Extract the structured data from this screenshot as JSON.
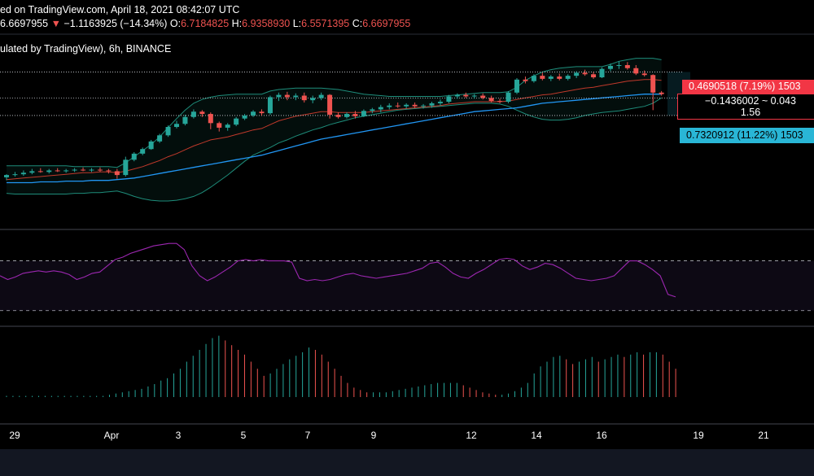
{
  "header": {
    "line1": "ed on TradingView.com, April 18, 2021 08:42:07 UTC",
    "price": "6.6697955",
    "arrow": "▼",
    "change": "−1.1163925 (−14.34%)",
    "o_label": "O:",
    "o_val": "6.7184825",
    "h_label": "H:",
    "h_val": "6.9358930",
    "l_label": "L:",
    "l_val": "6.5571395",
    "c_label": "C:",
    "c_val": "6.6697955",
    "line3": "ulated by TradingView), 6h, BINANCE"
  },
  "tags": {
    "up": "0.4690518 (7.19%) 1503",
    "range_line1": "−0.1436002 ~ 0.043",
    "range_line2": "1.56",
    "down": "0.7320912 (11.22%) 1503"
  },
  "colors": {
    "up": "#26a69a",
    "down": "#ef5350",
    "ma_blue": "#2196f3",
    "ma_red": "#c0392b",
    "bb": "#1e8c7a",
    "rsi": "#9c27b0",
    "tag_red": "#f23645",
    "tag_cyan": "#29b6d6"
  },
  "chart_data": [
    {
      "type": "candlestick",
      "title": "",
      "interval": "6h",
      "exchange": "BINANCE",
      "x_ticks": [
        "29",
        "Apr",
        "3",
        "5",
        "7",
        "9",
        "12",
        "14",
        "16",
        "19",
        "21"
      ],
      "candles": [
        {
          "o": -0.3,
          "h": 0.1,
          "l": -0.7,
          "c": 0.0
        },
        {
          "o": 0.0,
          "h": 0.4,
          "l": -0.2,
          "c": 0.1
        },
        {
          "o": 0.1,
          "h": 0.6,
          "l": -0.1,
          "c": 0.3
        },
        {
          "o": 0.3,
          "h": 0.8,
          "l": 0.1,
          "c": 0.5
        },
        {
          "o": 0.5,
          "h": 0.9,
          "l": 0.3,
          "c": 0.4
        },
        {
          "o": 0.4,
          "h": 0.8,
          "l": 0.2,
          "c": 0.6
        },
        {
          "o": 0.6,
          "h": 0.9,
          "l": 0.4,
          "c": 0.5
        },
        {
          "o": 0.5,
          "h": 0.8,
          "l": 0.3,
          "c": 0.6
        },
        {
          "o": 0.6,
          "h": 0.9,
          "l": 0.4,
          "c": 0.7
        },
        {
          "o": 0.7,
          "h": 1.0,
          "l": 0.5,
          "c": 0.6
        },
        {
          "o": 0.6,
          "h": 0.9,
          "l": 0.4,
          "c": 0.7
        },
        {
          "o": 0.7,
          "h": 1.0,
          "l": 0.4,
          "c": 0.6
        },
        {
          "o": 0.6,
          "h": 0.8,
          "l": 0.2,
          "c": 0.5
        },
        {
          "o": 0.5,
          "h": 0.8,
          "l": -0.5,
          "c": 0.0
        },
        {
          "o": 0.0,
          "h": 2.4,
          "l": -0.2,
          "c": 2.0
        },
        {
          "o": 2.0,
          "h": 3.0,
          "l": 1.8,
          "c": 2.8
        },
        {
          "o": 2.8,
          "h": 3.6,
          "l": 2.6,
          "c": 3.4
        },
        {
          "o": 3.4,
          "h": 4.6,
          "l": 3.3,
          "c": 4.4
        },
        {
          "o": 4.4,
          "h": 5.4,
          "l": 4.2,
          "c": 5.2
        },
        {
          "o": 5.2,
          "h": 6.5,
          "l": 5.0,
          "c": 6.3
        },
        {
          "o": 6.3,
          "h": 7.1,
          "l": 6.1,
          "c": 6.7
        },
        {
          "o": 6.7,
          "h": 7.9,
          "l": 6.5,
          "c": 7.6
        },
        {
          "o": 7.6,
          "h": 8.6,
          "l": 7.4,
          "c": 8.3
        },
        {
          "o": 8.3,
          "h": 8.5,
          "l": 7.6,
          "c": 8.0
        },
        {
          "o": 8.0,
          "h": 8.2,
          "l": 6.0,
          "c": 6.8
        },
        {
          "o": 6.8,
          "h": 7.0,
          "l": 5.7,
          "c": 6.2
        },
        {
          "o": 6.2,
          "h": 6.8,
          "l": 5.8,
          "c": 6.6
        },
        {
          "o": 6.6,
          "h": 7.6,
          "l": 6.4,
          "c": 7.4
        },
        {
          "o": 7.4,
          "h": 8.0,
          "l": 7.2,
          "c": 7.8
        },
        {
          "o": 7.8,
          "h": 8.5,
          "l": 7.6,
          "c": 8.3
        },
        {
          "o": 8.3,
          "h": 8.6,
          "l": 7.8,
          "c": 8.1
        },
        {
          "o": 8.1,
          "h": 10.4,
          "l": 7.9,
          "c": 10.2
        },
        {
          "o": 10.2,
          "h": 10.8,
          "l": 9.7,
          "c": 10.5
        },
        {
          "o": 10.5,
          "h": 10.9,
          "l": 9.8,
          "c": 10.2
        },
        {
          "o": 10.2,
          "h": 10.7,
          "l": 9.8,
          "c": 10.4
        },
        {
          "o": 10.4,
          "h": 10.8,
          "l": 9.5,
          "c": 9.8
        },
        {
          "o": 9.8,
          "h": 10.4,
          "l": 9.4,
          "c": 10.1
        },
        {
          "o": 10.1,
          "h": 10.8,
          "l": 9.8,
          "c": 10.5
        },
        {
          "o": 10.5,
          "h": 10.6,
          "l": 7.4,
          "c": 7.9
        },
        {
          "o": 7.9,
          "h": 8.2,
          "l": 7.4,
          "c": 7.6
        },
        {
          "o": 7.6,
          "h": 8.2,
          "l": 7.4,
          "c": 8.0
        },
        {
          "o": 8.0,
          "h": 8.4,
          "l": 7.4,
          "c": 7.7
        },
        {
          "o": 7.7,
          "h": 8.6,
          "l": 7.6,
          "c": 8.4
        },
        {
          "o": 8.4,
          "h": 8.8,
          "l": 8.1,
          "c": 8.6
        },
        {
          "o": 8.6,
          "h": 9.2,
          "l": 8.2,
          "c": 8.9
        },
        {
          "o": 8.9,
          "h": 9.4,
          "l": 8.6,
          "c": 9.1
        },
        {
          "o": 9.1,
          "h": 9.5,
          "l": 8.8,
          "c": 9.0
        },
        {
          "o": 9.0,
          "h": 9.4,
          "l": 8.7,
          "c": 9.2
        },
        {
          "o": 9.2,
          "h": 9.5,
          "l": 8.8,
          "c": 9.0
        },
        {
          "o": 9.0,
          "h": 9.3,
          "l": 8.7,
          "c": 9.1
        },
        {
          "o": 9.1,
          "h": 9.6,
          "l": 8.8,
          "c": 9.4
        },
        {
          "o": 9.4,
          "h": 9.9,
          "l": 9.1,
          "c": 9.6
        },
        {
          "o": 9.6,
          "h": 10.5,
          "l": 9.4,
          "c": 10.3
        },
        {
          "o": 10.3,
          "h": 10.7,
          "l": 10.0,
          "c": 10.5
        },
        {
          "o": 10.5,
          "h": 10.8,
          "l": 10.1,
          "c": 10.3
        },
        {
          "o": 10.3,
          "h": 10.6,
          "l": 10.0,
          "c": 10.4
        },
        {
          "o": 10.4,
          "h": 10.7,
          "l": 9.9,
          "c": 10.1
        },
        {
          "o": 10.1,
          "h": 10.4,
          "l": 9.5,
          "c": 9.7
        },
        {
          "o": 9.7,
          "h": 10.0,
          "l": 9.4,
          "c": 9.6
        },
        {
          "o": 9.6,
          "h": 11.0,
          "l": 9.4,
          "c": 10.8
        },
        {
          "o": 10.8,
          "h": 12.7,
          "l": 10.6,
          "c": 12.5
        },
        {
          "o": 12.5,
          "h": 12.9,
          "l": 12.0,
          "c": 12.3
        },
        {
          "o": 12.3,
          "h": 13.2,
          "l": 12.1,
          "c": 13.0
        },
        {
          "o": 13.0,
          "h": 13.4,
          "l": 12.4,
          "c": 12.6
        },
        {
          "o": 12.6,
          "h": 13.1,
          "l": 12.3,
          "c": 12.9
        },
        {
          "o": 12.9,
          "h": 13.3,
          "l": 12.4,
          "c": 12.6
        },
        {
          "o": 12.6,
          "h": 13.2,
          "l": 12.4,
          "c": 13.0
        },
        {
          "o": 13.0,
          "h": 13.6,
          "l": 12.7,
          "c": 13.4
        },
        {
          "o": 13.4,
          "h": 13.8,
          "l": 13.0,
          "c": 13.2
        },
        {
          "o": 13.2,
          "h": 13.5,
          "l": 12.6,
          "c": 12.8
        },
        {
          "o": 12.8,
          "h": 14.1,
          "l": 12.7,
          "c": 13.9
        },
        {
          "o": 13.9,
          "h": 14.6,
          "l": 13.6,
          "c": 14.3
        },
        {
          "o": 14.3,
          "h": 14.9,
          "l": 13.9,
          "c": 14.4
        },
        {
          "o": 14.4,
          "h": 14.8,
          "l": 13.8,
          "c": 14.0
        },
        {
          "o": 14.0,
          "h": 14.4,
          "l": 13.1,
          "c": 13.3
        },
        {
          "o": 13.3,
          "h": 13.7,
          "l": 12.9,
          "c": 13.1
        },
        {
          "o": 13.1,
          "h": 13.2,
          "l": 8.5,
          "c": 10.8
        },
        {
          "o": 10.8,
          "h": 11.0,
          "l": 10.4,
          "c": 10.6
        }
      ],
      "ma_fast": [
        -0.6,
        -0.5,
        -0.4,
        -0.3,
        -0.2,
        -0.1,
        0.0,
        0.1,
        0.2,
        0.3,
        0.3,
        0.4,
        0.4,
        0.3,
        0.5,
        0.8,
        1.1,
        1.5,
        1.9,
        2.4,
        2.8,
        3.3,
        3.8,
        4.2,
        4.6,
        4.8,
        5.0,
        5.3,
        5.6,
        5.9,
        6.1,
        6.6,
        7.1,
        7.4,
        7.7,
        7.9,
        8.1,
        8.3,
        8.3,
        8.2,
        8.2,
        8.2,
        8.2,
        8.3,
        8.4,
        8.5,
        8.6,
        8.7,
        8.8,
        8.9,
        9.0,
        9.1,
        9.3,
        9.4,
        9.5,
        9.6,
        9.6,
        9.6,
        9.6,
        9.7,
        9.9,
        10.1,
        10.3,
        10.5,
        10.6,
        10.8,
        11.0,
        11.2,
        11.4,
        11.5,
        11.7,
        11.9,
        12.1,
        12.3,
        12.4,
        12.5,
        12.5,
        12.4
      ],
      "ma_slow": [
        -1.0,
        -1.0,
        -1.0,
        -1.0,
        -0.9,
        -0.9,
        -0.9,
        -0.8,
        -0.8,
        -0.8,
        -0.7,
        -0.7,
        -0.7,
        -0.6,
        -0.5,
        -0.4,
        -0.2,
        0.0,
        0.2,
        0.4,
        0.6,
        0.8,
        1.0,
        1.2,
        1.4,
        1.6,
        1.8,
        2.0,
        2.2,
        2.4,
        2.6,
        2.9,
        3.2,
        3.5,
        3.8,
        4.1,
        4.4,
        4.7,
        4.9,
        5.1,
        5.3,
        5.5,
        5.7,
        5.9,
        6.1,
        6.3,
        6.5,
        6.7,
        6.9,
        7.1,
        7.3,
        7.5,
        7.7,
        7.9,
        8.1,
        8.3,
        8.4,
        8.5,
        8.6,
        8.7,
        8.8,
        9.0,
        9.2,
        9.4,
        9.5,
        9.6,
        9.7,
        9.8,
        9.9,
        10.0,
        10.1,
        10.2,
        10.3,
        10.4,
        10.5,
        10.6,
        10.6,
        10.6
      ],
      "bb_upper": [
        1.2,
        1.2,
        1.2,
        1.2,
        1.2,
        1.2,
        1.2,
        1.2,
        1.1,
        1.1,
        1.1,
        1.1,
        1.1,
        1.0,
        1.6,
        2.4,
        3.2,
        4.0,
        5.0,
        6.2,
        7.4,
        8.5,
        9.4,
        9.9,
        10.2,
        10.4,
        10.5,
        10.6,
        10.6,
        10.6,
        10.6,
        11.0,
        11.2,
        11.3,
        11.4,
        11.4,
        11.4,
        11.4,
        11.3,
        11.2,
        11.0,
        10.8,
        10.6,
        10.5,
        10.4,
        10.3,
        10.3,
        10.3,
        10.3,
        10.3,
        10.3,
        10.3,
        10.4,
        10.5,
        10.6,
        10.7,
        10.8,
        10.8,
        10.8,
        10.9,
        11.5,
        12.4,
        13.0,
        13.5,
        13.8,
        14.0,
        14.1,
        14.2,
        14.2,
        14.2,
        14.2,
        14.5,
        14.9,
        15.1,
        15.3,
        15.3,
        15.3,
        15.1
      ],
      "bb_lower": [
        -2.4,
        -2.5,
        -2.5,
        -2.5,
        -2.5,
        -2.5,
        -2.5,
        -2.5,
        -2.4,
        -2.4,
        -2.3,
        -2.3,
        -2.2,
        -2.1,
        -2.4,
        -2.8,
        -3.1,
        -3.3,
        -3.4,
        -3.4,
        -3.3,
        -3.1,
        -2.8,
        -2.3,
        -1.6,
        -0.8,
        0.0,
        0.9,
        1.8,
        2.6,
        3.1,
        3.6,
        4.2,
        4.6,
        5.1,
        5.5,
        5.9,
        6.2,
        6.6,
        6.9,
        7.2,
        7.5,
        7.7,
        7.9,
        8.1,
        8.3,
        8.5,
        8.6,
        8.7,
        8.8,
        8.9,
        9.0,
        9.1,
        9.2,
        9.3,
        9.4,
        9.4,
        9.4,
        9.3,
        9.0,
        8.5,
        8.0,
        7.6,
        7.3,
        7.2,
        7.2,
        7.3,
        7.5,
        7.8,
        8.0,
        8.2,
        8.3,
        8.4,
        8.6,
        8.8,
        9.0,
        9.4,
        10.1
      ],
      "hlines": [
        13.5,
        10.1,
        7.8
      ],
      "bb_ylim": [
        -5,
        16
      ]
    },
    {
      "type": "line",
      "title": "",
      "bands": [
        30,
        70
      ],
      "ylim": [
        20,
        90
      ],
      "values": [
        58,
        55,
        57,
        60,
        61,
        62,
        61,
        62,
        61,
        59,
        55,
        57,
        60,
        61,
        66,
        71,
        73,
        76,
        78,
        80,
        82,
        83,
        84,
        84,
        79,
        66,
        58,
        54,
        57,
        61,
        65,
        70,
        71,
        70,
        71,
        70,
        70,
        70,
        69,
        56,
        54,
        55,
        54,
        55,
        57,
        59,
        60,
        58,
        57,
        56,
        57,
        58,
        59,
        60,
        62,
        64,
        68,
        69,
        65,
        60,
        57,
        56,
        60,
        63,
        67,
        71,
        72,
        71,
        66,
        63,
        65,
        68,
        67,
        64,
        60,
        56,
        55,
        54,
        55,
        56,
        58,
        64,
        70,
        70,
        67,
        63,
        58,
        43,
        41
      ],
      "overlay": "purple"
    },
    {
      "type": "bar",
      "title": "",
      "values": [
        -1,
        -1,
        -1,
        -1,
        -1,
        -1,
        -1,
        -1,
        1,
        1,
        1,
        1,
        1,
        1,
        1,
        1,
        2,
        3,
        4,
        5,
        6,
        7,
        9,
        11,
        14,
        16,
        20,
        24,
        30,
        35,
        40,
        45,
        50,
        52,
        48,
        44,
        40,
        36,
        30,
        24,
        18,
        20,
        24,
        28,
        32,
        35,
        38,
        42,
        40,
        36,
        30,
        24,
        18,
        12,
        8,
        6,
        4,
        4,
        4,
        4,
        5,
        6,
        7,
        8,
        9,
        10,
        11,
        12,
        12,
        12,
        12,
        10,
        8,
        6,
        4,
        3,
        2,
        2,
        3,
        5,
        8,
        12,
        20,
        26,
        30,
        34,
        35,
        32,
        28,
        30,
        32,
        34,
        30,
        32,
        34,
        36,
        34,
        36,
        38,
        36,
        38,
        38,
        36,
        30,
        24
      ],
      "colors": [
        "down",
        "up"
      ]
    }
  ]
}
